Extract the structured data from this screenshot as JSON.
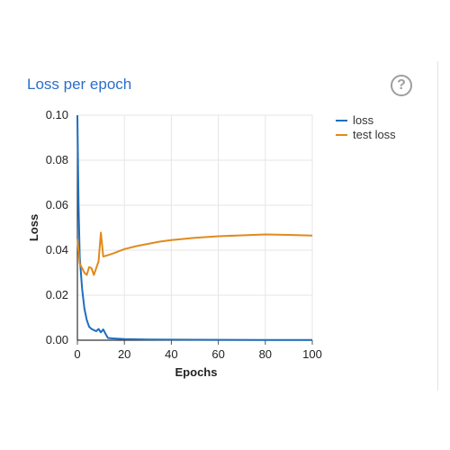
{
  "panel": {
    "title": "Loss per epoch",
    "help_icon": "help-circle-icon"
  },
  "chart_data": {
    "type": "line",
    "title": "Loss per epoch",
    "xlabel": "Epochs",
    "ylabel": "Loss",
    "xlim": [
      0,
      100
    ],
    "ylim": [
      0,
      0.1
    ],
    "xticks": [
      "0",
      "20",
      "40",
      "60",
      "80",
      "100"
    ],
    "yticks": [
      "0.00",
      "0.02",
      "0.04",
      "0.06",
      "0.08",
      "0.10"
    ],
    "grid": true,
    "legend_position": "right",
    "series": [
      {
        "name": "loss",
        "color": "#1f6fbf",
        "points": [
          [
            0,
            0.0998
          ],
          [
            0.5,
            0.06
          ],
          [
            1,
            0.037
          ],
          [
            2,
            0.023
          ],
          [
            3,
            0.014
          ],
          [
            4,
            0.009
          ],
          [
            5,
            0.006
          ],
          [
            6,
            0.005
          ],
          [
            7,
            0.0045
          ],
          [
            8,
            0.004
          ],
          [
            9,
            0.005
          ],
          [
            10,
            0.0035
          ],
          [
            11,
            0.0048
          ],
          [
            12,
            0.0028
          ],
          [
            13,
            0.001
          ],
          [
            15,
            0.0008
          ],
          [
            20,
            0.0005
          ],
          [
            30,
            0.0003
          ],
          [
            50,
            0.0002
          ],
          [
            80,
            0.0001
          ],
          [
            100,
            0.0001
          ]
        ]
      },
      {
        "name": "test loss",
        "color": "#e08a1e",
        "points": [
          [
            0,
            0.045
          ],
          [
            1,
            0.034
          ],
          [
            2,
            0.032
          ],
          [
            3,
            0.03
          ],
          [
            4,
            0.029
          ],
          [
            5,
            0.0325
          ],
          [
            6,
            0.032
          ],
          [
            7,
            0.029
          ],
          [
            8,
            0.032
          ],
          [
            9,
            0.035
          ],
          [
            10,
            0.0478
          ],
          [
            11,
            0.0372
          ],
          [
            12,
            0.0375
          ],
          [
            15,
            0.0385
          ],
          [
            20,
            0.0405
          ],
          [
            25,
            0.0418
          ],
          [
            30,
            0.0428
          ],
          [
            35,
            0.0438
          ],
          [
            40,
            0.0445
          ],
          [
            50,
            0.0455
          ],
          [
            60,
            0.0462
          ],
          [
            70,
            0.0466
          ],
          [
            80,
            0.047
          ],
          [
            90,
            0.0468
          ],
          [
            100,
            0.0465
          ]
        ]
      }
    ]
  }
}
